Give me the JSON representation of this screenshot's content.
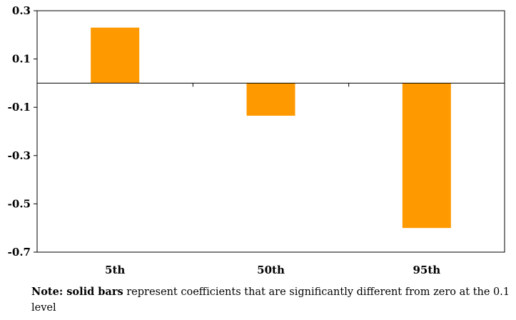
{
  "chart_data": {
    "type": "bar",
    "categories": [
      "5th",
      "50th",
      "95th"
    ],
    "series": [
      {
        "values": [
          0.23,
          -0.135,
          -0.6
        ]
      }
    ],
    "ylim": [
      -0.7,
      0.3
    ],
    "yticks": [
      "0.3",
      "0.1",
      "-0.1",
      "-0.3",
      "-0.5",
      "-0.7"
    ],
    "bar_color": "#ff9900",
    "grid": false,
    "legend": "none"
  },
  "note": {
    "bold_text": "Note: solid bars",
    "text": " represent coefficients that are significantly different from zero at the 0.1 level"
  }
}
